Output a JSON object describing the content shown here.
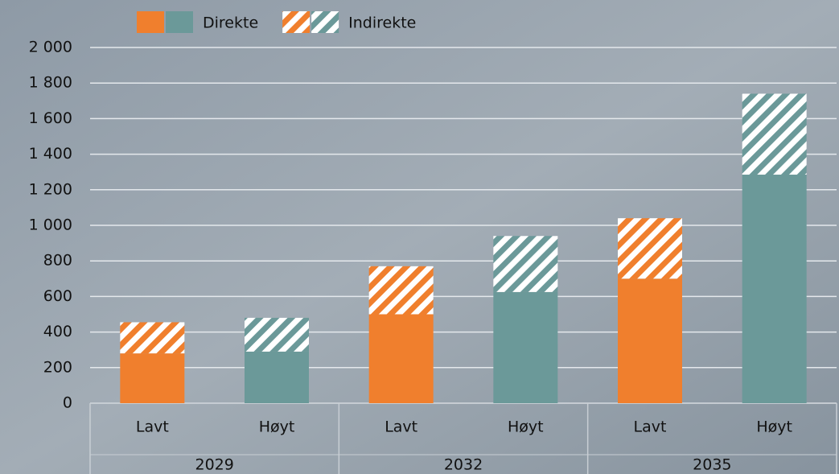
{
  "chart_data": {
    "type": "stacked-bar",
    "groups": [
      {
        "name": "2029",
        "categories": [
          "Lavt",
          "Høyt"
        ]
      },
      {
        "name": "2032",
        "categories": [
          "Lavt",
          "Høyt"
        ]
      },
      {
        "name": "2035",
        "categories": [
          "Lavt",
          "Høyt"
        ]
      }
    ],
    "series": [
      {
        "name": "Direkte",
        "hatch": false,
        "colors": [
          "#f07f2d",
          "#6b9999",
          "#f07f2d",
          "#6b9999",
          "#f07f2d",
          "#6b9999"
        ],
        "values": [
          280,
          290,
          500,
          625,
          700,
          1285
        ]
      },
      {
        "name": "Indirekte",
        "hatch": true,
        "colors": [
          "#f07f2d",
          "#6b9999",
          "#f07f2d",
          "#6b9999",
          "#f07f2d",
          "#6b9999"
        ],
        "values": [
          175,
          190,
          270,
          315,
          340,
          455
        ]
      }
    ],
    "ylim": [
      0,
      2000
    ],
    "yticks": [
      0,
      200,
      400,
      600,
      800,
      {
        "value": 1000,
        "label": "1 000"
      },
      {
        "value": 1200,
        "label": "1 200"
      },
      {
        "value": 1400,
        "label": "1 400"
      },
      {
        "value": 1600,
        "label": "1 600"
      },
      {
        "value": 1800,
        "label": "1 800"
      },
      {
        "value": 2000,
        "label": "2 000"
      }
    ],
    "grid": true
  }
}
